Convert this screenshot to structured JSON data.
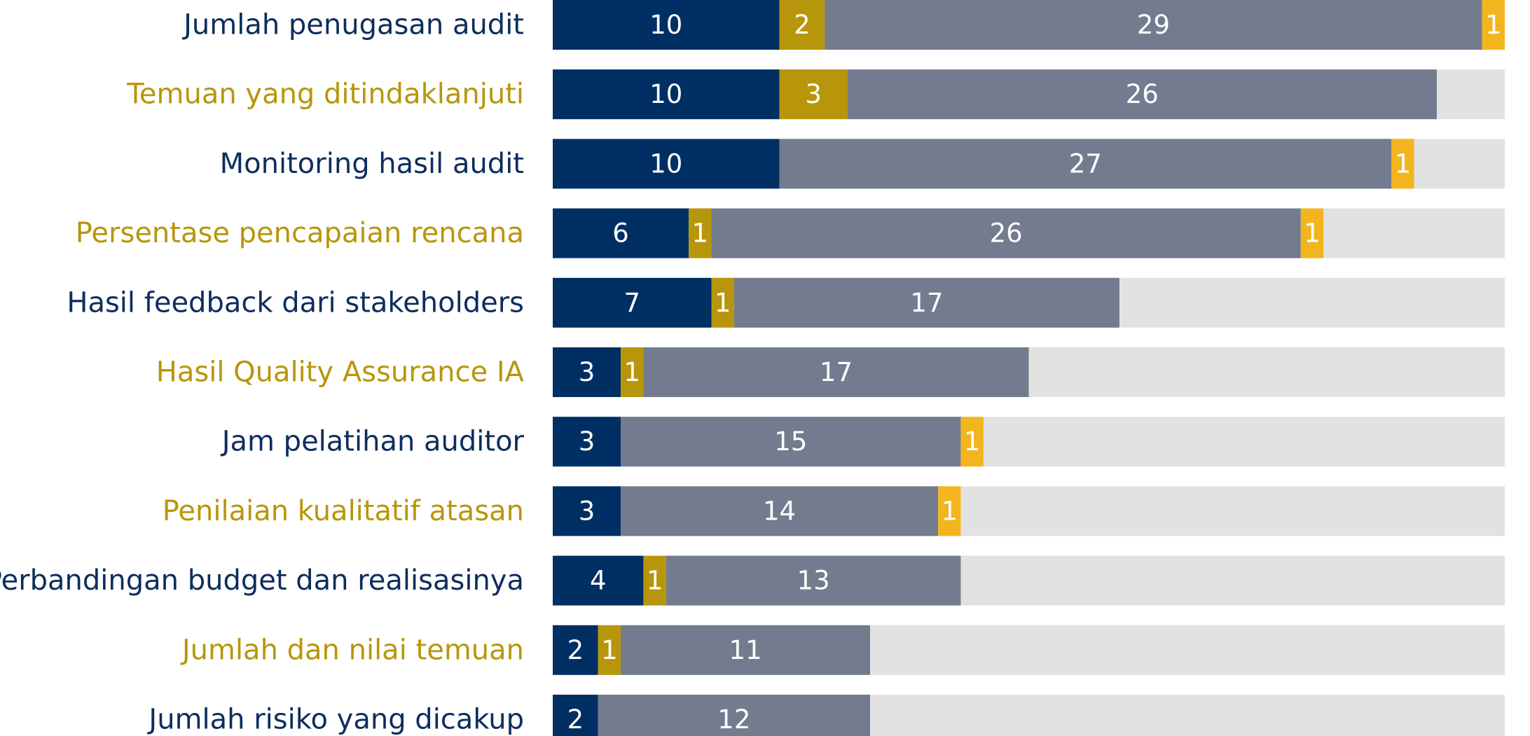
{
  "chart_data": {
    "type": "stacked_barh",
    "categories": [
      "Jumlah penugasan audit",
      "Temuan yang ditindaklanjuti",
      "Monitoring hasil audit",
      "Persentase pencapaian rencana",
      "Hasil feedback dari stakeholders",
      "Hasil Quality Assurance IA",
      "Jam pelatihan auditor",
      "Penilaian kualitatif atasan",
      "Perbandingan budget dan realisasinya",
      "Jumlah dan nilai temuan",
      "Jumlah risiko yang dicakup"
    ],
    "category_colors": [
      "#0d2d5e",
      "#b8960b",
      "#0d2d5e",
      "#b8960b",
      "#0d2d5e",
      "#b8960b",
      "#0d2d5e",
      "#b8960b",
      "#0d2d5e",
      "#b8960b",
      "#0d2d5e"
    ],
    "series": [
      {
        "color": "#002f63",
        "values": [
          10,
          10,
          10,
          6,
          7,
          3,
          3,
          3,
          4,
          2,
          2
        ]
      },
      {
        "color": "#b8960b",
        "values": [
          2,
          3,
          0,
          1,
          1,
          1,
          0,
          0,
          1,
          1,
          0
        ]
      },
      {
        "color": "#737c8e",
        "values": [
          29,
          26,
          27,
          26,
          17,
          17,
          15,
          14,
          13,
          11,
          12
        ]
      },
      {
        "color": "#f2b51d",
        "values": [
          1,
          0,
          1,
          1,
          0,
          0,
          1,
          1,
          0,
          0,
          0
        ]
      }
    ],
    "xlim": [
      0,
      42
    ],
    "track_color": "#e2e2e2"
  }
}
